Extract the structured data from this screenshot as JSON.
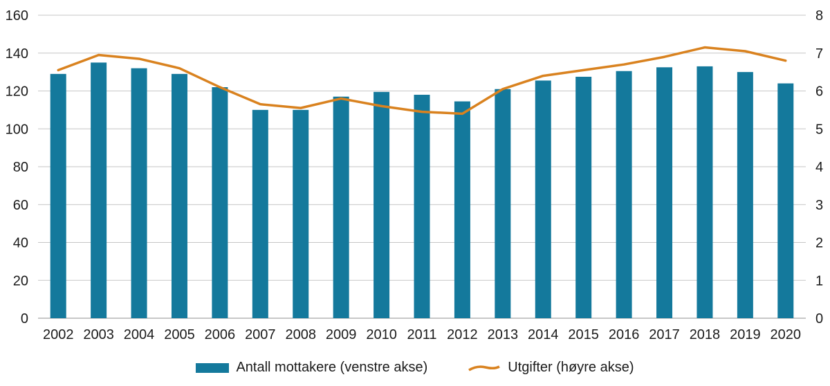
{
  "chart_data": {
    "type": "bar+line",
    "categories": [
      "2002",
      "2003",
      "2004",
      "2005",
      "2006",
      "2007",
      "2008",
      "2009",
      "2010",
      "2011",
      "2012",
      "2013",
      "2014",
      "2015",
      "2016",
      "2017",
      "2018",
      "2019",
      "2020"
    ],
    "series": [
      {
        "name": "Antall mottakere (venstre akse)",
        "type": "bar",
        "axis": "left",
        "color": "#14799c",
        "values": [
          129,
          135,
          132,
          129,
          122,
          110,
          110,
          117,
          119.5,
          118,
          114.5,
          121,
          125.5,
          127.5,
          130.5,
          132.5,
          133,
          130,
          124
        ]
      },
      {
        "name": "Utgifter (høyre akse)",
        "type": "line",
        "axis": "right",
        "color": "#d9821f",
        "values": [
          6.55,
          6.95,
          6.85,
          6.6,
          6.1,
          5.65,
          5.55,
          5.8,
          5.6,
          5.45,
          5.4,
          6.05,
          6.4,
          6.55,
          6.7,
          6.9,
          7.15,
          7.05,
          6.8
        ]
      }
    ],
    "left_axis": {
      "min": 0,
      "max": 160,
      "step": 20,
      "tick_labels": [
        "0",
        "20",
        "40",
        "60",
        "80",
        "100",
        "120",
        "140",
        "160"
      ]
    },
    "right_axis": {
      "min": 0,
      "max": 8,
      "step": 1,
      "tick_labels": [
        "0",
        "1",
        "2",
        "3",
        "4",
        "5",
        "6",
        "7",
        "8"
      ]
    },
    "grid": true,
    "legend_position": "bottom",
    "title": "",
    "xlabel": "",
    "ylabel": ""
  },
  "colors": {
    "bar": "#14799c",
    "line": "#d9821f",
    "grid": "#c6c6c6",
    "zero_line": "#8f8f8f",
    "text": "#1a1a1a"
  }
}
